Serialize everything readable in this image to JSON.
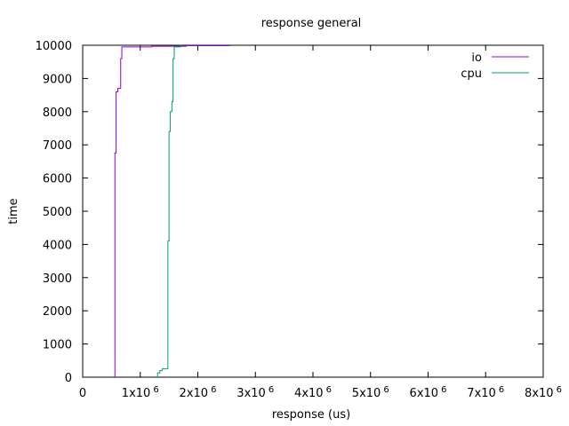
{
  "chart_data": {
    "type": "line",
    "title": "response general",
    "xlabel": "response (us)",
    "ylabel": "time",
    "xlim": [
      0,
      8000000
    ],
    "ylim": [
      0,
      10000
    ],
    "grid": false,
    "legend_position": "top-right",
    "x_ticks": [
      {
        "value": 0,
        "base": "0",
        "exp": ""
      },
      {
        "value": 1000000,
        "base": "1x10",
        "exp": "6"
      },
      {
        "value": 2000000,
        "base": "2x10",
        "exp": "6"
      },
      {
        "value": 3000000,
        "base": "3x10",
        "exp": "6"
      },
      {
        "value": 4000000,
        "base": "4x10",
        "exp": "6"
      },
      {
        "value": 5000000,
        "base": "5x10",
        "exp": "6"
      },
      {
        "value": 6000000,
        "base": "6x10",
        "exp": "6"
      },
      {
        "value": 7000000,
        "base": "7x10",
        "exp": "6"
      },
      {
        "value": 8000000,
        "base": "8x10",
        "exp": "6"
      }
    ],
    "y_ticks": [
      0,
      1000,
      2000,
      3000,
      4000,
      5000,
      6000,
      7000,
      8000,
      9000,
      10000
    ],
    "series": [
      {
        "name": "io",
        "color": "#9400d3",
        "points": [
          [
            560000,
            0
          ],
          [
            560000,
            6750
          ],
          [
            580000,
            6750
          ],
          [
            580000,
            8600
          ],
          [
            610000,
            8600
          ],
          [
            610000,
            8700
          ],
          [
            660000,
            8700
          ],
          [
            660000,
            9600
          ],
          [
            680000,
            9600
          ],
          [
            680000,
            9950
          ],
          [
            1200000,
            9950
          ],
          [
            1200000,
            9970
          ],
          [
            1800000,
            9970
          ],
          [
            1800000,
            9985
          ],
          [
            2550000,
            9985
          ],
          [
            2550000,
            10000
          ]
        ]
      },
      {
        "name": "cpu",
        "color": "#009e73",
        "points": [
          [
            1300000,
            0
          ],
          [
            1300000,
            130
          ],
          [
            1340000,
            130
          ],
          [
            1340000,
            200
          ],
          [
            1380000,
            200
          ],
          [
            1380000,
            250
          ],
          [
            1480000,
            250
          ],
          [
            1480000,
            4100
          ],
          [
            1500000,
            4100
          ],
          [
            1500000,
            7400
          ],
          [
            1520000,
            7400
          ],
          [
            1520000,
            8000
          ],
          [
            1550000,
            8000
          ],
          [
            1550000,
            8300
          ],
          [
            1570000,
            8300
          ],
          [
            1570000,
            9600
          ],
          [
            1590000,
            9600
          ],
          [
            1590000,
            9950
          ],
          [
            1700000,
            9950
          ],
          [
            1700000,
            10000
          ]
        ]
      }
    ]
  }
}
